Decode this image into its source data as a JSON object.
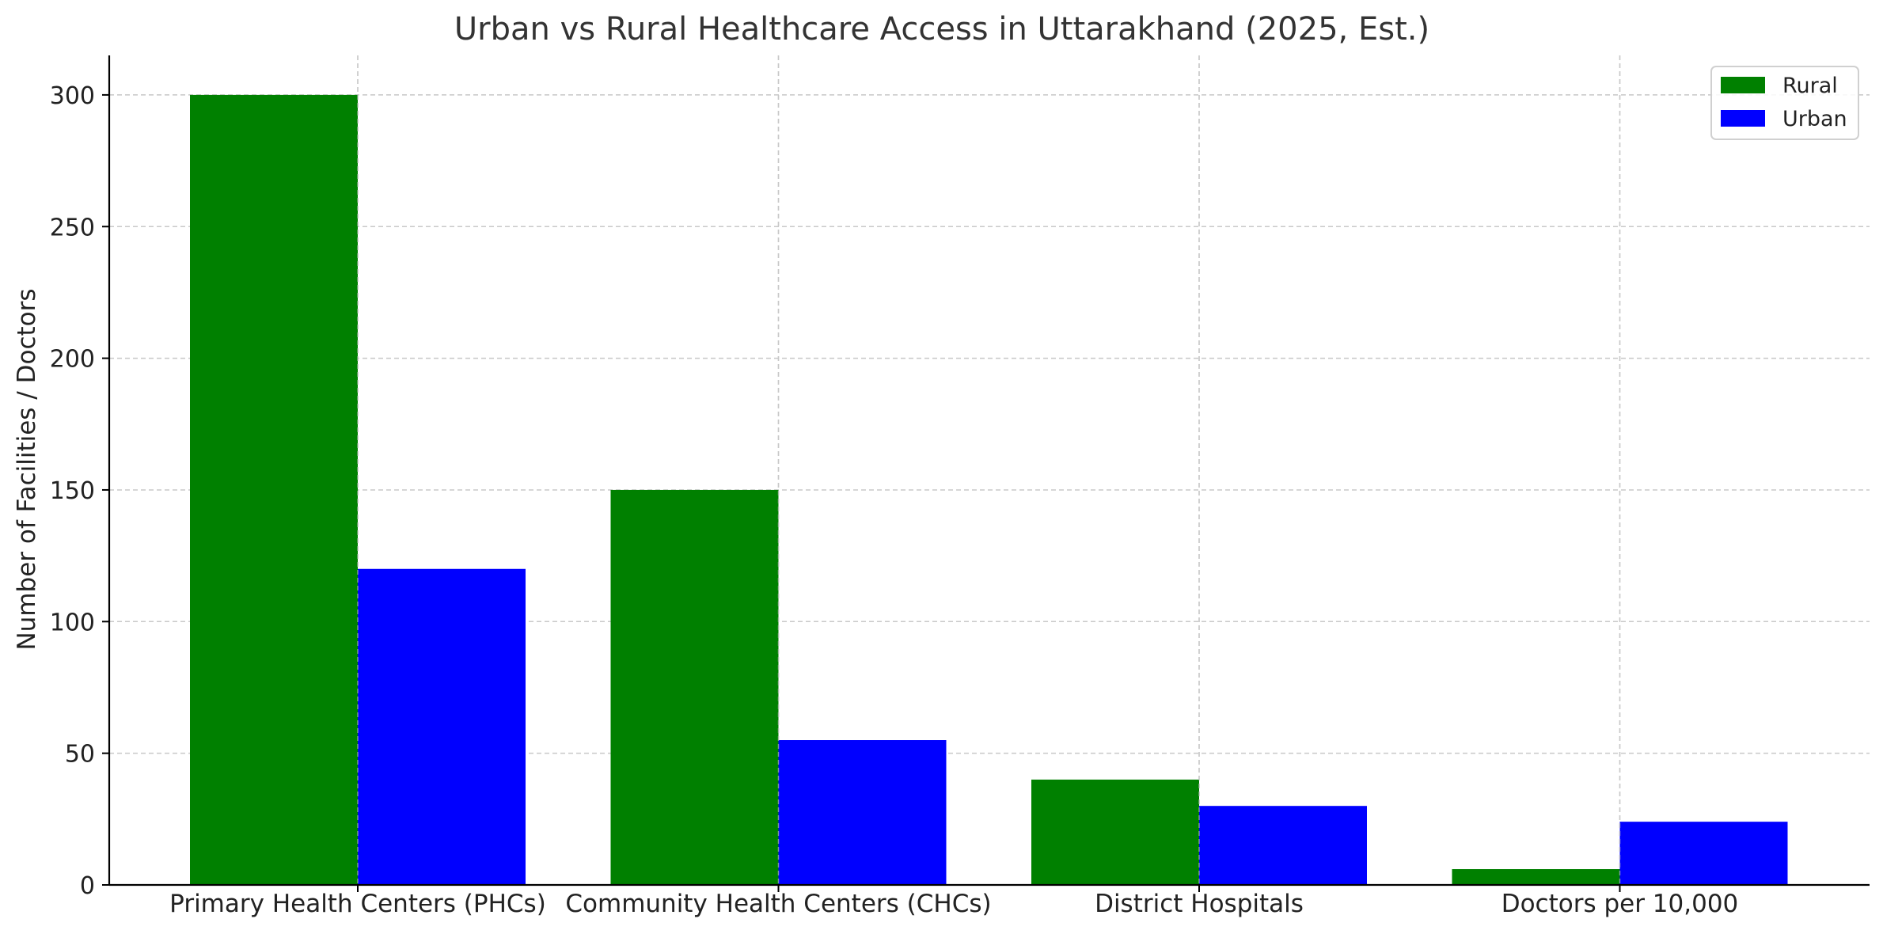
{
  "chart_data": {
    "type": "bar",
    "title": "Urban vs Rural Healthcare Access in Uttarakhand (2025, Est.)",
    "xlabel": "",
    "ylabel": "Number of Facilities / Doctors",
    "categories": [
      "Primary Health Centers (PHCs)",
      "Community Health Centers (CHCs)",
      "District Hospitals",
      "Doctors per 10,000"
    ],
    "series": [
      {
        "name": "Rural",
        "color": "#008000",
        "values": [
          300,
          150,
          40,
          6
        ]
      },
      {
        "name": "Urban",
        "color": "#0000ff",
        "values": [
          120,
          55,
          30,
          24
        ]
      }
    ],
    "ylim": [
      0,
      315
    ],
    "yticks": [
      0,
      50,
      100,
      150,
      200,
      250,
      300
    ],
    "grid": true,
    "legend_position": "top-right"
  }
}
